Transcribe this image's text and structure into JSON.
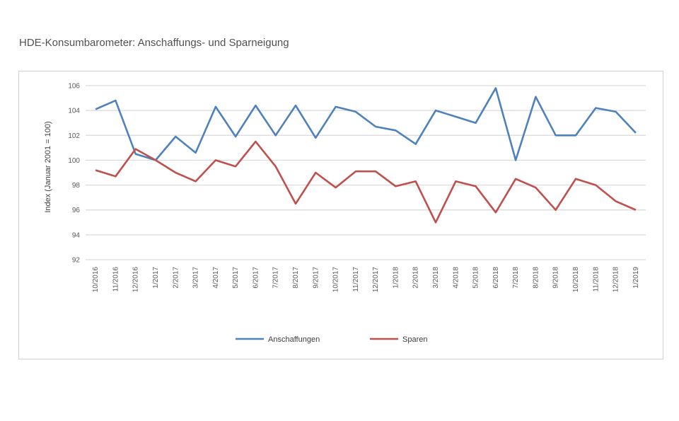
{
  "page": {
    "title": "HDE-Konsumbarometer: Anschaffungs- und Sparneigung"
  },
  "chart_data": {
    "type": "line",
    "title": "HDE-Konsumbarometer: Anschaffungs- und Sparneigung",
    "ylabel": "Index (Januar 2001 = 100)",
    "xlabel": "",
    "ylim": [
      92,
      106
    ],
    "yticks": [
      92,
      94,
      96,
      98,
      100,
      102,
      104,
      106
    ],
    "grid": true,
    "legend_position": "bottom",
    "categories": [
      "10/2016",
      "11/2016",
      "12/2016",
      "1/2017",
      "2/2017",
      "3/2017",
      "4/2017",
      "5/2017",
      "6/2017",
      "7/2017",
      "8/2017",
      "9/2017",
      "10/2017",
      "11/2017",
      "12/2017",
      "1/2018",
      "2/2018",
      "3/2018",
      "4/2018",
      "5/2018",
      "6/2018",
      "7/2018",
      "8/2018",
      "9/2018",
      "10/2018",
      "11/2018",
      "12/2018",
      "1/2019"
    ],
    "series": [
      {
        "name": "Anschaffungen",
        "color": "#4F81BD",
        "values": [
          104.1,
          104.8,
          100.5,
          100.0,
          101.9,
          100.6,
          104.3,
          101.9,
          104.4,
          102.0,
          104.4,
          101.8,
          104.3,
          103.9,
          102.7,
          102.4,
          101.3,
          104.0,
          103.5,
          103.0,
          105.8,
          100.0,
          105.1,
          102.0,
          102.0,
          104.2,
          103.9,
          102.2
        ]
      },
      {
        "name": "Sparen",
        "color": "#C0504D",
        "values": [
          99.2,
          98.7,
          100.9,
          100.0,
          99.0,
          98.3,
          100.0,
          99.5,
          101.5,
          99.5,
          96.5,
          99.0,
          97.8,
          99.1,
          99.1,
          97.9,
          98.3,
          95.0,
          98.3,
          97.9,
          95.8,
          98.5,
          97.8,
          96.0,
          98.5,
          98.0,
          96.7,
          96.0
        ]
      }
    ]
  }
}
